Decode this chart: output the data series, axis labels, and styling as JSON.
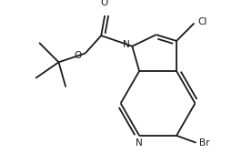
{
  "bg_color": "#ffffff",
  "line_color": "#1a1a1a",
  "bond_width": 1.3,
  "figsize": [
    2.77,
    1.68
  ],
  "dpi": 100,
  "atoms": {
    "Cl": {
      "label": "Cl"
    },
    "N_pyrrole": {
      "label": "N"
    },
    "O_carbonyl": {
      "label": "O"
    },
    "O_ester": {
      "label": "O"
    },
    "N_pyridine": {
      "label": "N"
    },
    "Br": {
      "label": "Br"
    }
  },
  "font_size": 7.5
}
